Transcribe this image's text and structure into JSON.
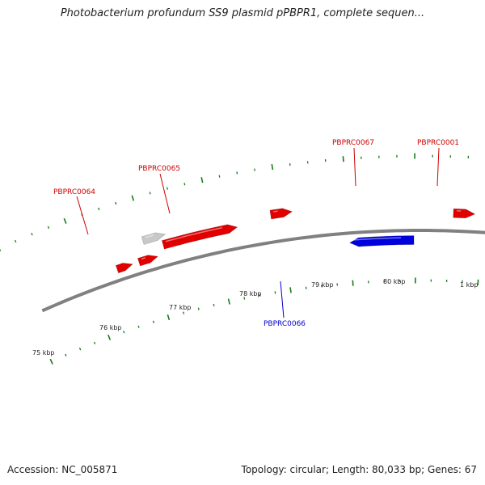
{
  "title": "Photobacterium profundum SS9 plasmid pPBPR1, complete sequen...",
  "footer": {
    "accession": "Accession: NC_005871",
    "topology": "Topology: circular; Length: 80,033 bp; Genes: 67"
  },
  "colors": {
    "forward_gene": "#e00000",
    "reverse_gene": "#0000dd",
    "other_gene": "#c8c8c8",
    "backbone": "#808080",
    "tick": "#1a7a1a",
    "forward_label": "#cc0000",
    "reverse_label": "#0000cc"
  },
  "kbp_labels": [
    {
      "name": "kbp-75",
      "text": "75 kbp"
    },
    {
      "name": "kbp-76",
      "text": "76 kbp"
    },
    {
      "name": "kbp-77",
      "text": "77 kbp"
    },
    {
      "name": "kbp-78",
      "text": "78 kbp"
    },
    {
      "name": "kbp-79",
      "text": "79 kbp"
    },
    {
      "name": "kbp-80",
      "text": "80 kbp"
    },
    {
      "name": "kbp-1",
      "text": "1 kbp"
    }
  ],
  "gene_labels": [
    {
      "name": "gene-label-pbprc0064",
      "text": "PBPRC0064",
      "strand": "forward"
    },
    {
      "name": "gene-label-pbprc0065",
      "text": "PBPRC0065",
      "strand": "forward"
    },
    {
      "name": "gene-label-pbprc0067",
      "text": "PBPRC0067",
      "strand": "forward"
    },
    {
      "name": "gene-label-pbprc0001",
      "text": "PBPRC0001",
      "strand": "forward"
    },
    {
      "name": "gene-label-pbprc0066",
      "text": "PBPRC0066",
      "strand": "reverse"
    }
  ]
}
